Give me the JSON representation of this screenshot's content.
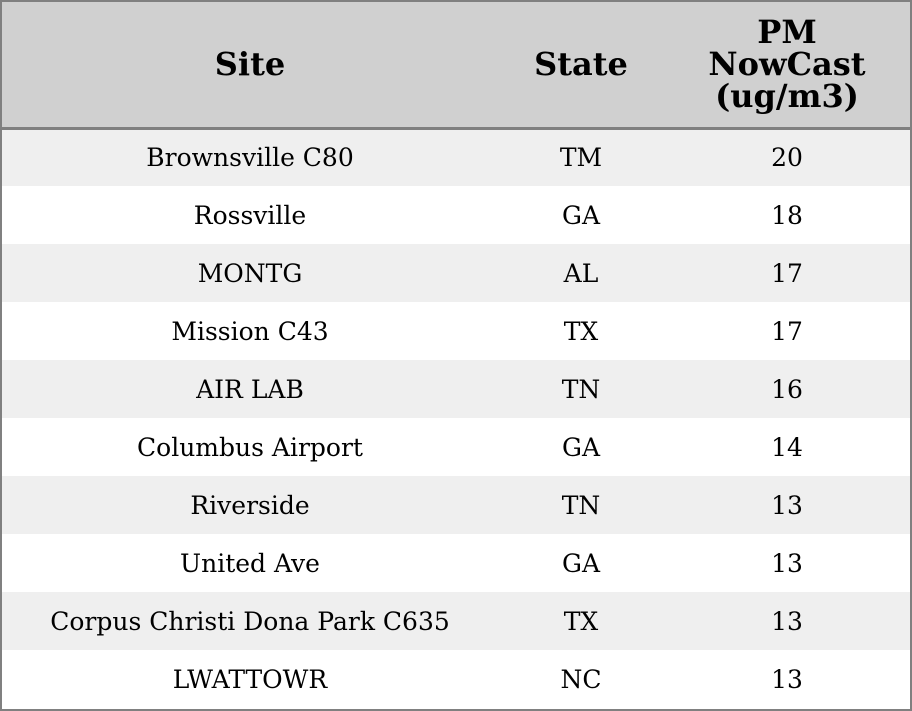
{
  "chart_data": {
    "type": "table",
    "columns": [
      "Site",
      "State",
      "PM NowCast (ug/m3)"
    ],
    "rows": [
      {
        "site": "Brownsville C80",
        "state": "TM",
        "pm": 20
      },
      {
        "site": "Rossville",
        "state": "GA",
        "pm": 18
      },
      {
        "site": "MONTG",
        "state": "AL",
        "pm": 17
      },
      {
        "site": "Mission C43",
        "state": "TX",
        "pm": 17
      },
      {
        "site": "AIR LAB",
        "state": "TN",
        "pm": 16
      },
      {
        "site": "Columbus Airport",
        "state": "GA",
        "pm": 14
      },
      {
        "site": "Riverside",
        "state": "TN",
        "pm": 13
      },
      {
        "site": "United Ave",
        "state": "GA",
        "pm": 13
      },
      {
        "site": "Corpus Christi Dona Park C635",
        "state": "TX",
        "pm": 13
      },
      {
        "site": "LWATTOWR",
        "state": "NC",
        "pm": 13
      }
    ],
    "header_background": "#d0d0d0",
    "row_stripe_color": "#efefef",
    "border_color": "#808080"
  }
}
